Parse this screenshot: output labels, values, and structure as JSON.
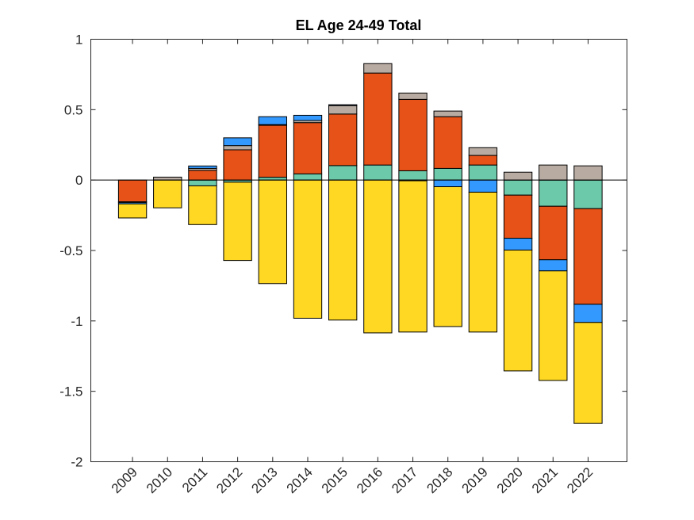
{
  "chart_data": {
    "type": "bar",
    "stacked": true,
    "title": "EL  Age 24-49  Total",
    "xlabel": "",
    "ylabel": "",
    "ylim": [
      -2,
      1
    ],
    "yticks": [
      1,
      0.5,
      0,
      -0.5,
      -1,
      -1.5,
      -2
    ],
    "ytick_labels": [
      "1",
      "0.5",
      "0",
      "-0.5",
      "-1",
      "-1.5",
      "-2"
    ],
    "grid": false,
    "legend": "none",
    "categories": [
      "2009",
      "2010",
      "2011",
      "2012",
      "2013",
      "2014",
      "2015",
      "2016",
      "2017",
      "2018",
      "2019",
      "2020",
      "2021",
      "2022"
    ],
    "series": [
      {
        "name": "teal",
        "color": "#6CC9AA",
        "values": [
          0,
          0,
          -0.041,
          -0.015,
          0.02,
          0.044,
          0.103,
          0.107,
          0.066,
          0.083,
          0.107,
          -0.107,
          -0.186,
          -0.203
        ]
      },
      {
        "name": "orange",
        "color": "#E65217",
        "values": [
          -0.154,
          0,
          0.069,
          0.215,
          0.369,
          0.364,
          0.366,
          0.653,
          0.507,
          0.367,
          0.068,
          -0.306,
          -0.38,
          -0.679
        ]
      },
      {
        "name": "gray",
        "color": "#B8ABA2",
        "values": [
          -0.005,
          0.021,
          0.014,
          0.03,
          0.005,
          0.015,
          0.06,
          0.067,
          0.045,
          0.04,
          0.055,
          0.056,
          0.107,
          0.101
        ]
      },
      {
        "name": "blue",
        "color": "#3399FF",
        "values": [
          -0.01,
          0,
          0.017,
          0.055,
          0.056,
          0.037,
          0.006,
          0,
          -0.005,
          -0.047,
          -0.086,
          -0.084,
          -0.079,
          -0.129
        ]
      },
      {
        "name": "yellow",
        "color": "#FFD823",
        "values": [
          -0.1,
          -0.197,
          -0.275,
          -0.556,
          -0.735,
          -0.981,
          -0.994,
          -1.085,
          -1.074,
          -0.993,
          -0.993,
          -0.858,
          -0.778,
          -0.717
        ]
      }
    ]
  }
}
